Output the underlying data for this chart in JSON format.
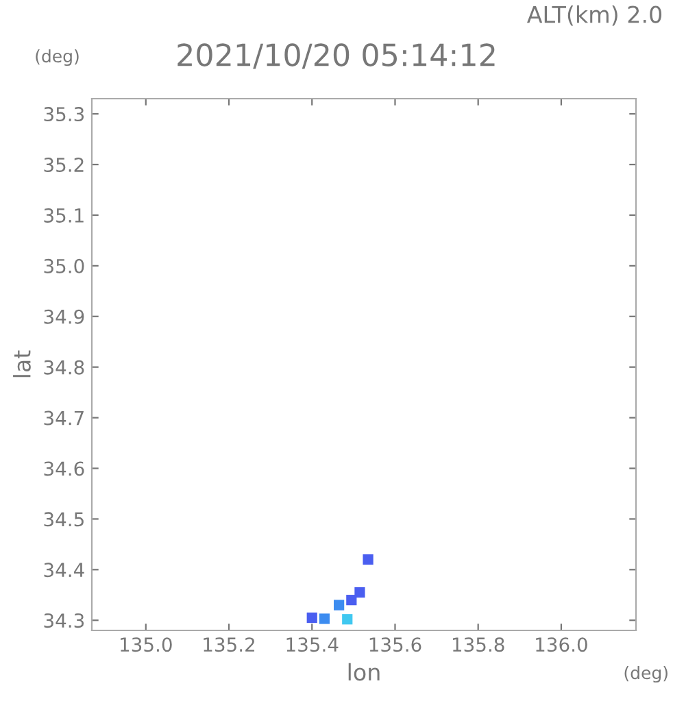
{
  "chart_data": {
    "type": "scatter",
    "title": "2021/10/20 05:14:12",
    "subtitle": "ALT(km) 2.0",
    "xlabel": "lon",
    "ylabel": "lat",
    "annotations": [
      "(deg)",
      "(deg)"
    ],
    "xlim": [
      134.87,
      136.18
    ],
    "ylim": [
      34.28,
      35.33
    ],
    "xticks": [
      {
        "value": 135.0,
        "label": "135.0"
      },
      135.2,
      135.4,
      135.6,
      135.8,
      {
        "value": 136.0,
        "label": "136.0"
      }
    ],
    "yticks": [
      34.3,
      34.4,
      34.5,
      34.6,
      34.7,
      34.8,
      34.9,
      {
        "value": 35.0,
        "label": "35.0"
      },
      35.1,
      35.2,
      35.3
    ],
    "marker": "square",
    "grid": false,
    "legend": false,
    "series": [
      {
        "color": "#4a5ef0",
        "x": [
          135.535,
          135.515,
          135.495,
          135.4
        ],
        "values": [
          34.42,
          34.355,
          34.34,
          34.305
        ]
      },
      {
        "color": "#3c8cf0",
        "x": [
          135.465,
          135.43
        ],
        "values": [
          34.33,
          34.303
        ]
      },
      {
        "color": "#40c8f0",
        "x": [
          135.485
        ],
        "values": [
          34.302
        ]
      }
    ]
  }
}
